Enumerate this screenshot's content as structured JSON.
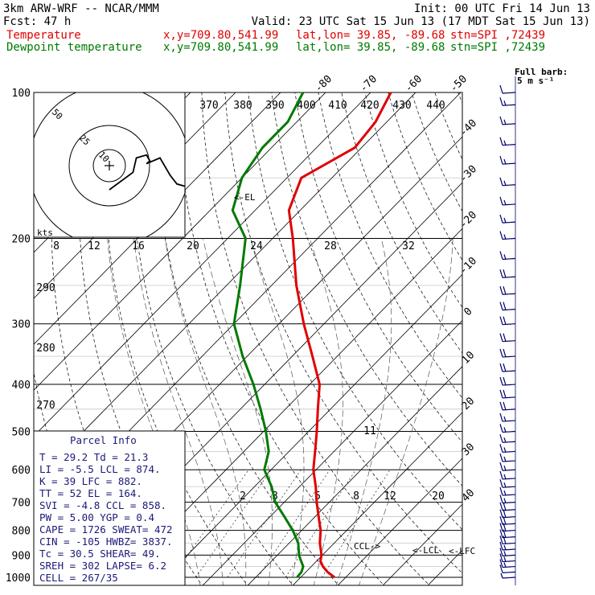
{
  "header": {
    "model": "3km ARW-WRF -- NCAR/MMM",
    "init": "Init: 00 UTC Fri 14 Jun 13",
    "fcst": "Fcst:   47 h",
    "valid": "Valid: 23 UTC Sat 15 Jun 13 (17 MDT Sat 15 Jun 13)",
    "temp_label": "Temperature",
    "dew_label": "Dewpoint temperature",
    "xy": "x,y=709.80,541.99",
    "latlon": "lat,lon= 39.85, -89.68",
    "stn": "stn=SPI ,72439"
  },
  "barb_legend": {
    "line1": "Full barb:",
    "line2": "5 m s⁻¹"
  },
  "colors": {
    "temperature": "#e00000",
    "dewpoint": "#007a00",
    "info": "#1a1a7a",
    "grid": "#000000"
  },
  "chart_data": {
    "type": "line",
    "title": "",
    "pressure_ticks": [
      100,
      200,
      300,
      400,
      500,
      600,
      700,
      800,
      900,
      1000
    ],
    "pressure_range": [
      100,
      1000
    ],
    "temperature_isotherms": [
      40,
      30,
      20,
      10,
      0,
      -10,
      -20,
      -30,
      -40,
      -50,
      -60,
      -70,
      -80
    ],
    "theta_labels": [
      370,
      380,
      390,
      400,
      410,
      420,
      430,
      440,
      290,
      280,
      270
    ],
    "mixing_ratio_labels_upper": [
      8,
      12,
      16,
      20,
      24,
      28,
      32
    ],
    "mixing_ratio_labels_lower": [
      2,
      3,
      5,
      8,
      12,
      20
    ],
    "theta_e_labels": [
      11
    ],
    "series": [
      {
        "name": "Temperature",
        "color": "#e00000",
        "points": [
          [
            1000,
            27.5
          ],
          [
            975,
            24.8
          ],
          [
            950,
            22.6
          ],
          [
            925,
            20.8
          ],
          [
            900,
            19.8
          ],
          [
            850,
            16.8
          ],
          [
            800,
            14.2
          ],
          [
            750,
            10.8
          ],
          [
            700,
            7.2
          ],
          [
            650,
            3.6
          ],
          [
            600,
            -0.6
          ],
          [
            550,
            -4.2
          ],
          [
            500,
            -8.2
          ],
          [
            450,
            -12.8
          ],
          [
            400,
            -17.8
          ],
          [
            350,
            -25.5
          ],
          [
            300,
            -34.5
          ],
          [
            250,
            -44.5
          ],
          [
            200,
            -55.5
          ],
          [
            175,
            -62.5
          ],
          [
            150,
            -66.8
          ],
          [
            130,
            -61.5
          ],
          [
            115,
            -62.5
          ],
          [
            100,
            -65.5
          ]
        ]
      },
      {
        "name": "Dewpoint temperature",
        "color": "#007a00",
        "points": [
          [
            1000,
            19.2
          ],
          [
            975,
            19.0
          ],
          [
            950,
            18.2
          ],
          [
            925,
            16.5
          ],
          [
            900,
            14.8
          ],
          [
            850,
            12.0
          ],
          [
            800,
            8.0
          ],
          [
            750,
            3.2
          ],
          [
            700,
            -2.0
          ],
          [
            650,
            -6.2
          ],
          [
            600,
            -11.5
          ],
          [
            550,
            -14.5
          ],
          [
            500,
            -19.5
          ],
          [
            450,
            -25.5
          ],
          [
            400,
            -32.5
          ],
          [
            350,
            -41.0
          ],
          [
            300,
            -50.0
          ],
          [
            250,
            -57.0
          ],
          [
            200,
            -66.0
          ],
          [
            175,
            -75.0
          ],
          [
            150,
            -80.0
          ],
          [
            130,
            -82.0
          ],
          [
            115,
            -82.0
          ],
          [
            100,
            -85.0
          ]
        ]
      }
    ],
    "annotations": [
      "<-EL",
      "CCL->",
      "<-LCL",
      "<-LFC"
    ],
    "hodograph": {
      "units": "kts",
      "ring_labels": [
        "50",
        "25",
        "10"
      ],
      "trace": [
        [
          0,
          0
        ],
        [
          12,
          14
        ],
        [
          22,
          16
        ],
        [
          24,
          22
        ],
        [
          20,
          24
        ],
        [
          18,
          22
        ],
        [
          22,
          30
        ],
        [
          14,
          34
        ],
        [
          10,
          36
        ],
        [
          4,
          40
        ],
        [
          2,
          46
        ],
        [
          4,
          50
        ],
        [
          -2,
          56
        ]
      ]
    },
    "wind_barbs": [
      {
        "p": 1000,
        "spd": 5,
        "dir": 200
      },
      {
        "p": 975,
        "spd": 10,
        "dir": 205
      },
      {
        "p": 950,
        "spd": 15,
        "dir": 210
      },
      {
        "p": 925,
        "spd": 15,
        "dir": 215
      },
      {
        "p": 900,
        "spd": 15,
        "dir": 220
      },
      {
        "p": 875,
        "spd": 15,
        "dir": 225
      },
      {
        "p": 850,
        "spd": 20,
        "dir": 230
      },
      {
        "p": 825,
        "spd": 20,
        "dir": 230
      },
      {
        "p": 800,
        "spd": 20,
        "dir": 235
      },
      {
        "p": 775,
        "spd": 20,
        "dir": 240
      },
      {
        "p": 750,
        "spd": 20,
        "dir": 240
      },
      {
        "p": 725,
        "spd": 20,
        "dir": 245
      },
      {
        "p": 700,
        "spd": 15,
        "dir": 250
      },
      {
        "p": 675,
        "spd": 15,
        "dir": 250
      },
      {
        "p": 650,
        "spd": 15,
        "dir": 255
      },
      {
        "p": 625,
        "spd": 15,
        "dir": 255
      },
      {
        "p": 600,
        "spd": 15,
        "dir": 260
      },
      {
        "p": 575,
        "spd": 15,
        "dir": 260
      },
      {
        "p": 550,
        "spd": 15,
        "dir": 265
      },
      {
        "p": 525,
        "spd": 15,
        "dir": 265
      },
      {
        "p": 500,
        "spd": 15,
        "dir": 270
      },
      {
        "p": 475,
        "spd": 15,
        "dir": 270
      },
      {
        "p": 450,
        "spd": 20,
        "dir": 270
      },
      {
        "p": 425,
        "spd": 20,
        "dir": 270
      },
      {
        "p": 400,
        "spd": 20,
        "dir": 270
      },
      {
        "p": 375,
        "spd": 20,
        "dir": 270
      },
      {
        "p": 350,
        "spd": 20,
        "dir": 270
      },
      {
        "p": 325,
        "spd": 20,
        "dir": 270
      },
      {
        "p": 300,
        "spd": 20,
        "dir": 270
      },
      {
        "p": 280,
        "spd": 20,
        "dir": 270
      },
      {
        "p": 260,
        "spd": 20,
        "dir": 270
      },
      {
        "p": 240,
        "spd": 20,
        "dir": 265
      },
      {
        "p": 220,
        "spd": 15,
        "dir": 265
      },
      {
        "p": 200,
        "spd": 15,
        "dir": 265
      },
      {
        "p": 185,
        "spd": 15,
        "dir": 260
      },
      {
        "p": 170,
        "spd": 15,
        "dir": 260
      },
      {
        "p": 155,
        "spd": 15,
        "dir": 255
      },
      {
        "p": 140,
        "spd": 15,
        "dir": 255
      },
      {
        "p": 128,
        "spd": 15,
        "dir": 255
      },
      {
        "p": 116,
        "spd": 15,
        "dir": 260
      },
      {
        "p": 106,
        "spd": 15,
        "dir": 260
      },
      {
        "p": 100,
        "spd": 10,
        "dir": 260
      }
    ]
  },
  "parcel_info": {
    "title": "Parcel Info",
    "rows": [
      "T  =   29.2  Td =  21.3",
      "LI =   -5.5  LCL = 874.",
      "K  =     39  LFC = 882.",
      "TT =     52  EL  = 164.",
      "SVI =  -4.8  CCL = 858.",
      "PW =   5.00  YGP =  0.4",
      "CAPE =  1726  SWEAT=  472",
      "CIN =  -105  HWBZ= 3837.",
      "Tc =   30.5  SHEAR=  49.",
      "SREH =   302  LAPSE=  6.2",
      "CELL = 267/35"
    ]
  }
}
